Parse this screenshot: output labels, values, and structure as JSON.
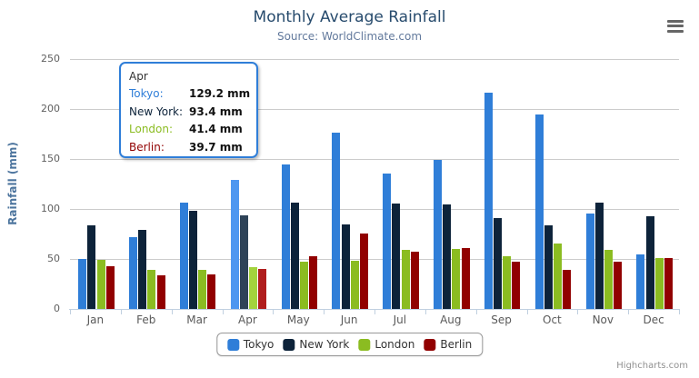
{
  "chart": {
    "title": "Monthly Average Rainfall",
    "subtitle": "Source: WorldClimate.com",
    "y_axis_title": "Rainfall (mm)",
    "credits": "Highcharts.com",
    "colors": {
      "title": "#274b6d",
      "subtitle": "#62799c",
      "axis_line": "#c0d0e0",
      "gridline": "#cccccc",
      "axis_label": "#606060",
      "y_axis_title": "#4d759e",
      "tooltip_border": "#2f7ed8"
    }
  },
  "chart_data": {
    "type": "bar",
    "title": "Monthly Average Rainfall",
    "subtitle": "Source: WorldClimate.com",
    "xlabel": "",
    "ylabel": "Rainfall (mm)",
    "ylim": [
      0,
      250
    ],
    "yticks": [
      0,
      50,
      100,
      150,
      200,
      250
    ],
    "grid": true,
    "legend_position": "bottom",
    "categories": [
      "Jan",
      "Feb",
      "Mar",
      "Apr",
      "May",
      "Jun",
      "Jul",
      "Aug",
      "Sep",
      "Oct",
      "Nov",
      "Dec"
    ],
    "series": [
      {
        "name": "Tokyo",
        "color": "#2f7ed8",
        "hover_color": "#4e97f0",
        "values": [
          49.9,
          71.5,
          106.4,
          129.2,
          144.0,
          176.0,
          135.6,
          148.5,
          216.4,
          194.1,
          95.6,
          54.4
        ]
      },
      {
        "name": "New York",
        "color": "#0d233a",
        "hover_color": "#2e4358",
        "values": [
          83.6,
          78.8,
          98.5,
          93.4,
          106.0,
          84.5,
          105.0,
          104.3,
          91.2,
          83.5,
          106.6,
          92.3
        ]
      },
      {
        "name": "London",
        "color": "#8bbc21",
        "hover_color": "#a3d33d",
        "values": [
          48.9,
          38.8,
          39.3,
          41.4,
          47.0,
          48.3,
          59.0,
          59.6,
          52.4,
          65.2,
          59.3,
          51.2
        ]
      },
      {
        "name": "Berlin",
        "color": "#910000",
        "hover_color": "#b01d1d",
        "values": [
          42.4,
          33.2,
          34.5,
          39.7,
          52.6,
          75.5,
          57.4,
          60.4,
          47.6,
          39.1,
          46.8,
          51.1
        ]
      }
    ],
    "hovered_category": "Apr",
    "hovered_category_index": 3
  },
  "tooltip": {
    "header": "Apr",
    "rows": [
      {
        "label": "Tokyo:",
        "value": "129.2 mm",
        "color": "#2f7ed8"
      },
      {
        "label": "New York:",
        "value": "93.4 mm",
        "color": "#0d233a"
      },
      {
        "label": "London:",
        "value": "41.4 mm",
        "color": "#8bbc21"
      },
      {
        "label": "Berlin:",
        "value": "39.7 mm",
        "color": "#910000"
      }
    ]
  },
  "legend": {
    "items": [
      "Tokyo",
      "New York",
      "London",
      "Berlin"
    ]
  }
}
